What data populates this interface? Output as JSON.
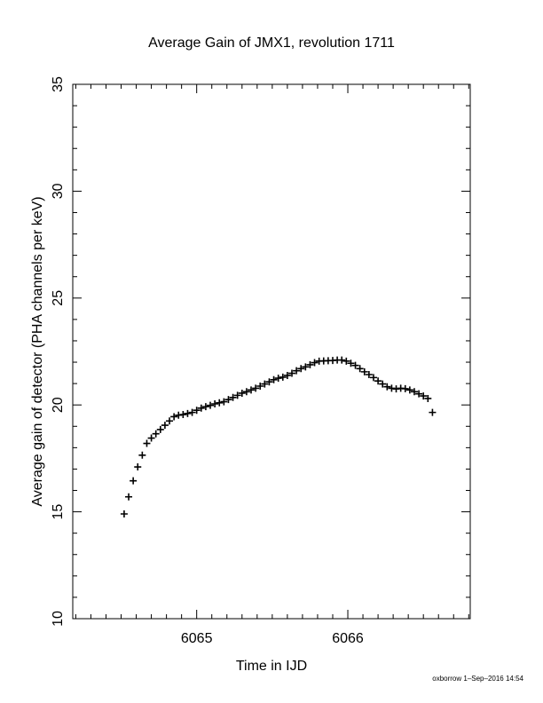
{
  "chart_data": {
    "type": "scatter",
    "title": "Average Gain of JMX1, revolution 1711",
    "x_label": "Time in IJD",
    "y_label": "Average gain of detector (PHA channels per keV)",
    "footer": "oxborrow  1–Sep–2016 14:54",
    "color": "#000000",
    "xlim": [
      6064.18,
      6066.81
    ],
    "ylim": [
      10,
      35
    ],
    "xticks": [
      6065,
      6066
    ],
    "yticks": [
      10,
      15,
      20,
      25,
      30,
      35
    ],
    "xminorticks": [
      6064.2,
      6064.3,
      6064.4,
      6064.5,
      6064.6,
      6064.7,
      6064.8,
      6064.9,
      6065.1,
      6065.2,
      6065.3,
      6065.4,
      6065.5,
      6065.6,
      6065.7,
      6065.8,
      6065.9,
      6066.1,
      6066.2,
      6066.3,
      6066.4,
      6066.5,
      6066.6,
      6066.7,
      6066.8
    ],
    "yminorticks": [
      11,
      12,
      13,
      14,
      16,
      17,
      18,
      19,
      21,
      22,
      23,
      24,
      26,
      27,
      28,
      29,
      31,
      32,
      33,
      34
    ],
    "x": [
      6064.52,
      6064.55,
      6064.58,
      6064.61,
      6064.64,
      6064.67,
      6064.7,
      6064.73,
      6064.76,
      6064.79,
      6064.82,
      6064.85,
      6064.88,
      6064.91,
      6064.94,
      6064.97,
      6065.0,
      6065.03,
      6065.06,
      6065.09,
      6065.12,
      6065.15,
      6065.18,
      6065.21,
      6065.24,
      6065.27,
      6065.3,
      6065.33,
      6065.36,
      6065.39,
      6065.42,
      6065.45,
      6065.48,
      6065.51,
      6065.54,
      6065.57,
      6065.6,
      6065.63,
      6065.66,
      6065.69,
      6065.72,
      6065.75,
      6065.78,
      6065.81,
      6065.84,
      6065.87,
      6065.9,
      6065.93,
      6065.96,
      6065.99,
      6066.02,
      6066.05,
      6066.08,
      6066.11,
      6066.14,
      6066.17,
      6066.2,
      6066.23,
      6066.26,
      6066.29,
      6066.32,
      6066.35,
      6066.38,
      6066.41,
      6066.44,
      6066.47,
      6066.5,
      6066.53,
      6066.56
    ],
    "values": [
      14.9,
      15.7,
      16.45,
      17.1,
      17.65,
      18.2,
      18.45,
      18.65,
      18.85,
      19.05,
      19.25,
      19.45,
      19.52,
      19.55,
      19.6,
      19.65,
      19.75,
      19.85,
      19.92,
      19.98,
      20.05,
      20.1,
      20.15,
      20.25,
      20.35,
      20.45,
      20.55,
      20.62,
      20.7,
      20.78,
      20.88,
      20.98,
      21.08,
      21.18,
      21.25,
      21.3,
      21.38,
      21.48,
      21.6,
      21.7,
      21.78,
      21.88,
      21.98,
      22.05,
      22.06,
      22.07,
      22.08,
      22.1,
      22.1,
      22.05,
      21.95,
      21.85,
      21.7,
      21.55,
      21.42,
      21.28,
      21.12,
      20.98,
      20.85,
      20.78,
      20.75,
      20.78,
      20.76,
      20.7,
      20.62,
      20.52,
      20.42,
      20.3,
      19.65
    ]
  }
}
